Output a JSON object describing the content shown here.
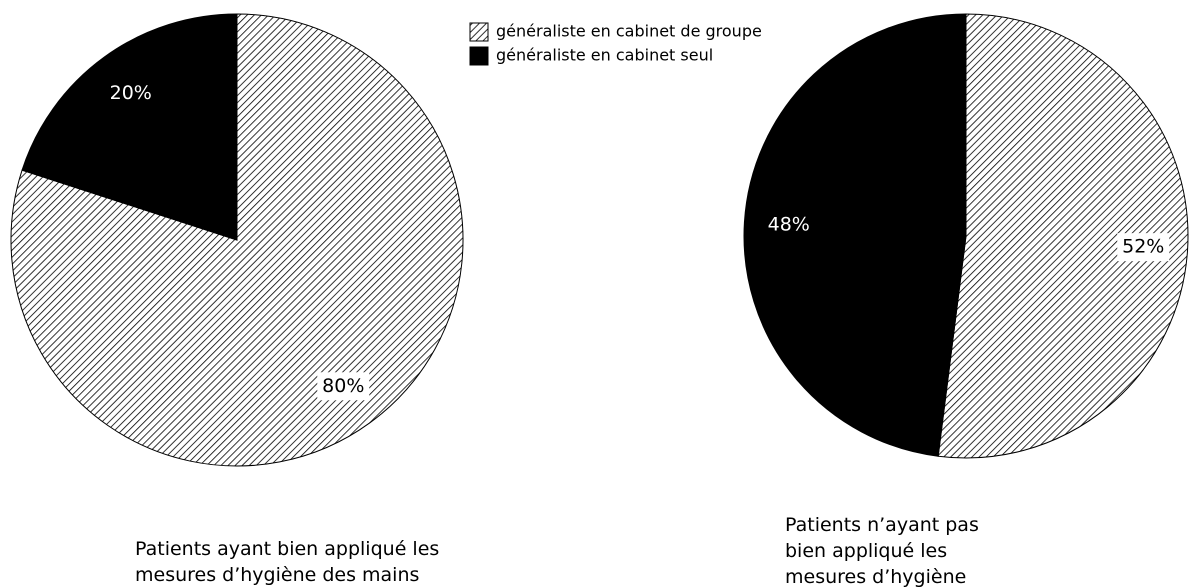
{
  "legend": {
    "labels": [
      "généraliste en cabinet de groupe",
      "généraliste en cabinet seul"
    ],
    "fills": [
      "hatch",
      "#000000"
    ]
  },
  "chart_data": [
    {
      "type": "pie",
      "title": "Patients ayant bien appliqué les mesures d’hygiène des mains",
      "values": [
        80,
        20
      ],
      "value_labels": [
        "80%",
        "20%"
      ]
    },
    {
      "type": "pie",
      "title": "Patients n’ayant pas bien appliqué les mesures d’hygiène des mains",
      "values": [
        52,
        48
      ],
      "value_labels": [
        "52%",
        "48%"
      ]
    }
  ]
}
